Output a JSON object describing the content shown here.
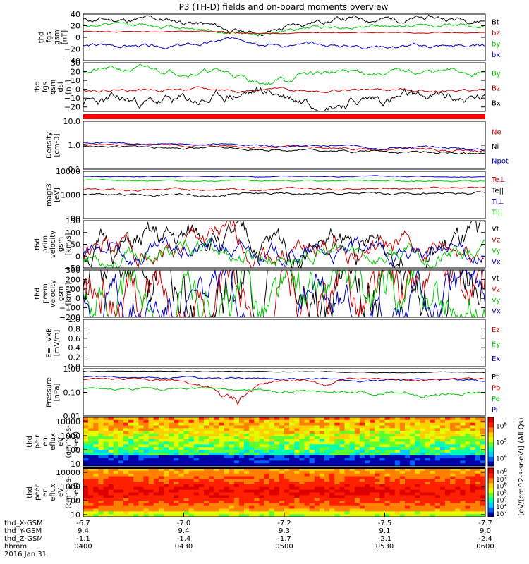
{
  "title": "P3 (TH-D) fields and on-board moments overview",
  "chart_data": {
    "type": "line",
    "panels": [
      {
        "id": "fgs_gsm",
        "ylabel": [
          "thd",
          "fgs",
          "gsm",
          "[nT]"
        ],
        "ylim": [
          -40,
          40
        ],
        "ticks": [
          "40",
          "20",
          "0",
          "−20",
          "−40"
        ],
        "tick_values": [
          40,
          20,
          0,
          -20,
          -40
        ],
        "legend": [
          {
            "label": "Bt",
            "color": "#000000"
          },
          {
            "label": "bz",
            "color": "#cc0000"
          },
          {
            "label": "by",
            "color": "#00cc00"
          },
          {
            "label": "bx",
            "color": "#0000cc"
          }
        ]
      },
      {
        "id": "fgs_gsm_dsl",
        "ylabel": [
          "thd",
          "fgs",
          "gsm",
          "dsl",
          "[nT]"
        ],
        "ylim": [
          -25,
          30
        ],
        "ticks": [
          "30",
          "20",
          "10",
          "0",
          "−10",
          "−20"
        ],
        "tick_values": [
          30,
          20,
          10,
          0,
          -10,
          -20
        ],
        "legend": [
          {
            "label": "By",
            "color": "#00cc00"
          },
          {
            "label": "Bz",
            "color": "#cc0000"
          },
          {
            "label": "Bx",
            "color": "#000000"
          }
        ]
      },
      {
        "id": "density",
        "ylabel": [
          "Density",
          "[cm-3]"
        ],
        "scale": "log",
        "ylim": [
          0.1,
          10
        ],
        "ticks": [
          "10.0",
          "1.0",
          "0.1"
        ],
        "tick_values": [
          10,
          1,
          0.1
        ],
        "legend": [
          {
            "label": "Ne",
            "color": "#cc0000"
          },
          {
            "label": "Ni",
            "color": "#000000"
          },
          {
            "label": "Npot",
            "color": "#0000cc"
          }
        ]
      },
      {
        "id": "temperature",
        "ylabel": [
          "magt3",
          "[eV]"
        ],
        "scale": "log",
        "ylim": [
          100,
          10000
        ],
        "ticks": [
          "10000",
          "1000",
          "100"
        ],
        "tick_values": [
          10000,
          1000,
          100
        ],
        "legend": [
          {
            "label": "Te⊥",
            "color": "#cc0000"
          },
          {
            "label": "Te||",
            "color": "#000000"
          },
          {
            "label": "Ti⊥",
            "color": "#0000cc"
          },
          {
            "label": "Ti||",
            "color": "#00cc00"
          }
        ]
      },
      {
        "id": "ion_velocity",
        "ylabel": [
          "thd",
          "peim",
          "velocity",
          "gsm",
          "[km/s]"
        ],
        "ylim": [
          -50,
          150
        ],
        "ticks": [
          "150",
          "100",
          "50",
          "0",
          "−50"
        ],
        "tick_values": [
          150,
          100,
          50,
          0,
          -50
        ],
        "legend": [
          {
            "label": "Vt",
            "color": "#000000"
          },
          {
            "label": "Vz",
            "color": "#cc0000"
          },
          {
            "label": "Vy",
            "color": "#00cc00"
          },
          {
            "label": "Vx",
            "color": "#0000cc"
          }
        ]
      },
      {
        "id": "electron_velocity",
        "ylabel": [
          "thd",
          "peem",
          "velocity",
          "gsm",
          "[km/s]"
        ],
        "ylim": [
          -200,
          300
        ],
        "ticks": [
          "300",
          "200",
          "100",
          "0",
          "−100",
          "−200"
        ],
        "tick_values": [
          300,
          200,
          100,
          0,
          -100,
          -200
        ],
        "legend": [
          {
            "label": "Vt",
            "color": "#000000"
          },
          {
            "label": "Vz",
            "color": "#cc0000"
          },
          {
            "label": "Vy",
            "color": "#00cc00"
          },
          {
            "label": "Vx",
            "color": "#0000cc"
          }
        ]
      },
      {
        "id": "efield",
        "ylabel": [
          "E=−VxB",
          "[mV/m]"
        ],
        "ylim": [
          0,
          1
        ],
        "ticks": [
          "1.0",
          "0.8",
          "0.6",
          "0.4",
          "0.2",
          "0.0"
        ],
        "tick_values": [
          1.0,
          0.8,
          0.6,
          0.4,
          0.2,
          0.0
        ],
        "legend": [
          {
            "label": "Ez",
            "color": "#cc0000"
          },
          {
            "label": "Ey",
            "color": "#00cc00"
          },
          {
            "label": "Ex",
            "color": "#0000cc"
          }
        ]
      },
      {
        "id": "pressure",
        "ylabel": [
          "Pressure",
          "[nPa]"
        ],
        "scale": "log",
        "ylim": [
          0.01,
          1
        ],
        "ticks": [
          "1.00",
          "0.10",
          "0.01"
        ],
        "tick_values": [
          1,
          0.1,
          0.01
        ],
        "legend": [
          {
            "label": "Pt",
            "color": "#000000"
          },
          {
            "label": "Pb",
            "color": "#cc0000"
          },
          {
            "label": "Pe",
            "color": "#00cc00"
          },
          {
            "label": "Pi",
            "color": "#0000cc"
          }
        ]
      },
      {
        "id": "ion_spectrogram",
        "type": "heatmap",
        "ylabel": [
          "thd",
          "peir",
          "en",
          "eflux",
          "eV",
          "(cm^2-s-",
          "sr-eV)"
        ],
        "scale": "log",
        "ylim": [
          7,
          20000
        ],
        "ticks": [
          "10000",
          "1000",
          "100",
          "10"
        ],
        "tick_values": [
          10000,
          1000,
          100,
          10
        ]
      },
      {
        "id": "electron_spectrogram",
        "type": "heatmap",
        "ylabel": [
          "thd",
          "peer",
          "en",
          "eflux",
          "eV",
          "(cm^2-s-",
          "sr-eV)"
        ],
        "scale": "log",
        "ylim": [
          7,
          20000
        ],
        "ticks": [
          "10000",
          "1000",
          "100",
          "10"
        ],
        "tick_values": [
          10000,
          1000,
          100,
          10
        ]
      }
    ],
    "colorbar": {
      "label": "[eV/(cm^2-s-sr-eV)] (All Qs)",
      "ticks": [
        "10^8",
        "10^7",
        "10^6",
        "10^5",
        "10^4",
        "10^3",
        "10^2"
      ],
      "ion_ticks": [
        "10^6",
        "10^5",
        "10^4"
      ],
      "electron_ticks": [
        "10^8",
        "10^7",
        "10^6",
        "10^5",
        "10^4",
        "10^3",
        "10^2"
      ]
    },
    "x_axis": {
      "row_labels": [
        "thd_X-GSM",
        "thd_Y-GSM",
        "thd_Z-GSM",
        "hhmm",
        "2016 Jan 31"
      ],
      "ticks": [
        {
          "x": "-6.7",
          "y": "9.4",
          "z": "-1.1",
          "time": "0400"
        },
        {
          "x": "-7.0",
          "y": "9.4",
          "z": "-1.4",
          "time": "0430"
        },
        {
          "x": "-7.2",
          "y": "9.3",
          "z": "-1.7",
          "time": "0500"
        },
        {
          "x": "-7.5",
          "y": "9.1",
          "z": "-2.1",
          "time": "0530"
        },
        {
          "x": "-7.7",
          "y": "9.0",
          "z": "-2.4",
          "time": "0600"
        }
      ]
    }
  }
}
